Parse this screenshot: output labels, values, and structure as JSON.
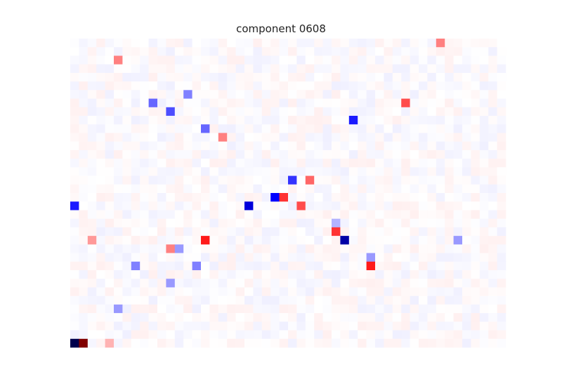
{
  "chart_data": {
    "type": "heatmap",
    "title": "component 0608",
    "xlabel": "",
    "ylabel": "",
    "rows": 36,
    "cols": 50,
    "colormap": "seismic",
    "color_limits": [
      -1,
      1
    ],
    "axes_visible": false,
    "notable_cells": [
      {
        "row": 35,
        "col": 0,
        "value": -1.0
      },
      {
        "row": 35,
        "col": 1,
        "value": 1.0
      },
      {
        "row": 35,
        "col": 4,
        "value": 0.15
      },
      {
        "row": 23,
        "col": 31,
        "value": -0.75
      },
      {
        "row": 23,
        "col": 15,
        "value": 0.45
      },
      {
        "row": 23,
        "col": 2,
        "value": 0.2
      },
      {
        "row": 19,
        "col": 0,
        "value": -0.45
      },
      {
        "row": 19,
        "col": 20,
        "value": -0.6
      },
      {
        "row": 19,
        "col": 26,
        "value": 0.35
      },
      {
        "row": 18,
        "col": 23,
        "value": -0.5
      },
      {
        "row": 18,
        "col": 24,
        "value": 0.4
      },
      {
        "row": 16,
        "col": 25,
        "value": -0.4
      },
      {
        "row": 16,
        "col": 27,
        "value": 0.3
      },
      {
        "row": 22,
        "col": 30,
        "value": 0.4
      },
      {
        "row": 25,
        "col": 34,
        "value": -0.2
      },
      {
        "row": 26,
        "col": 34,
        "value": 0.45
      },
      {
        "row": 24,
        "col": 12,
        "value": -0.2
      },
      {
        "row": 24,
        "col": 11,
        "value": 0.25
      },
      {
        "row": 9,
        "col": 32,
        "value": -0.45
      },
      {
        "row": 7,
        "col": 38,
        "value": 0.35
      },
      {
        "row": 8,
        "col": 11,
        "value": -0.35
      },
      {
        "row": 7,
        "col": 9,
        "value": -0.3
      },
      {
        "row": 6,
        "col": 13,
        "value": -0.25
      },
      {
        "row": 10,
        "col": 15,
        "value": -0.3
      },
      {
        "row": 11,
        "col": 17,
        "value": 0.25
      },
      {
        "row": 2,
        "col": 5,
        "value": 0.25
      },
      {
        "row": 0,
        "col": 42,
        "value": 0.25
      },
      {
        "row": 26,
        "col": 7,
        "value": -0.25
      },
      {
        "row": 26,
        "col": 14,
        "value": -0.25
      },
      {
        "row": 31,
        "col": 5,
        "value": -0.2
      },
      {
        "row": 28,
        "col": 11,
        "value": -0.2
      },
      {
        "row": 21,
        "col": 30,
        "value": -0.15
      },
      {
        "row": 23,
        "col": 44,
        "value": -0.2
      }
    ]
  }
}
